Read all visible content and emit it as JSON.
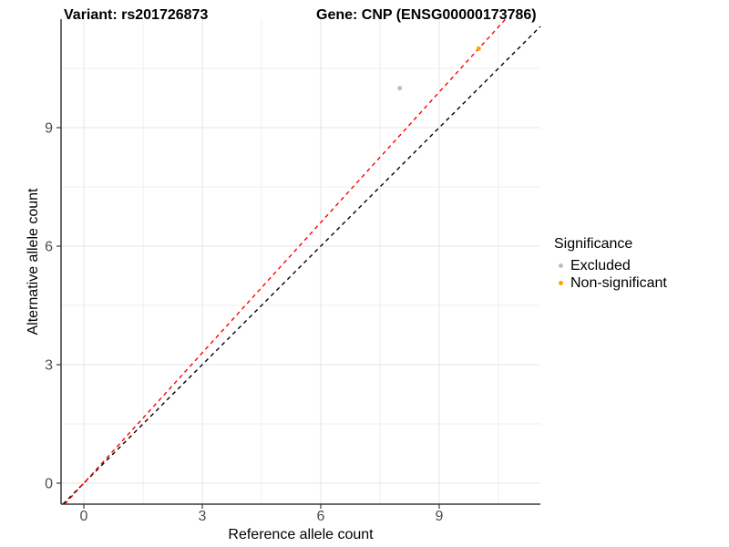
{
  "header": {
    "variant_title": "Variant: rs201726873",
    "gene_title": "Gene: CNP (ENSG00000173786)"
  },
  "legend": {
    "title": "Significance",
    "items": [
      {
        "label": "Excluded",
        "color": "#bebebe"
      },
      {
        "label": "Non-significant",
        "color": "#ffa500"
      }
    ]
  },
  "chart_data": {
    "type": "scatter",
    "title": "Variant: rs201726873 — Gene: CNP (ENSG00000173786)",
    "xlabel": "Reference allele count",
    "ylabel": "Alternative allele count",
    "xlim": [
      -0.58,
      11.56
    ],
    "ylim": [
      -0.53,
      11.75
    ],
    "x_ticks": [
      0,
      3,
      6,
      9
    ],
    "y_ticks": [
      0,
      3,
      6,
      9
    ],
    "x_minor": [
      1.5,
      4.5,
      7.5,
      10.5
    ],
    "y_minor": [
      1.5,
      4.5,
      7.5,
      10.5
    ],
    "grid": true,
    "legend_position": "right",
    "legend_title": "Significance",
    "series": [
      {
        "name": "Excluded",
        "color": "#bebebe",
        "points": [
          {
            "x": 8,
            "y": 10
          }
        ]
      },
      {
        "name": "Non-significant",
        "color": "#ffa500",
        "points": [
          {
            "x": 10,
            "y": 11
          }
        ]
      }
    ],
    "lines": [
      {
        "name": "identity-line",
        "slope": 1.0,
        "intercept": 0,
        "color": "#000000",
        "style": "dashed"
      },
      {
        "name": "expected-ratio-line",
        "slope": 1.1,
        "intercept": 0,
        "color": "#ff0000",
        "style": "dashed"
      }
    ],
    "colors": {
      "grid_major": "#e4e4e4",
      "grid_minor": "#efefef",
      "axis_line": "#3a3a3a",
      "tick_text": "#4d4d4d"
    }
  }
}
